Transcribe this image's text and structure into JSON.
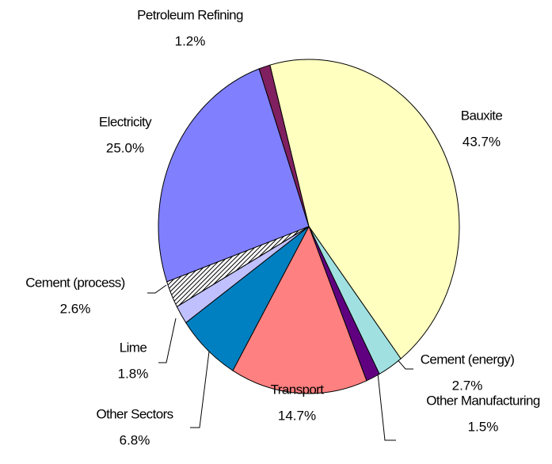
{
  "chart_data": {
    "type": "pie",
    "categories": [
      "Bauxite",
      "Cement (energy)",
      "Other Manufacturing",
      "Transport",
      "Other Sectors",
      "Lime",
      "Cement (process)",
      "Electricity",
      "Petroleum Refining"
    ],
    "values": [
      43.7,
      2.7,
      1.5,
      14.7,
      6.8,
      1.8,
      2.6,
      25.0,
      1.2
    ],
    "value_labels": [
      "43.7%",
      "2.7%",
      "1.5%",
      "14.7%",
      "6.8%",
      "1.8%",
      "2.6%",
      "25.0%",
      "1.2%"
    ],
    "colors": [
      "#ffffc0",
      "#a0e0e0",
      "#600080",
      "#ff8080",
      "#0080c0",
      "#c0c0ff",
      "hatch",
      "#8080ff",
      "#802060"
    ]
  }
}
